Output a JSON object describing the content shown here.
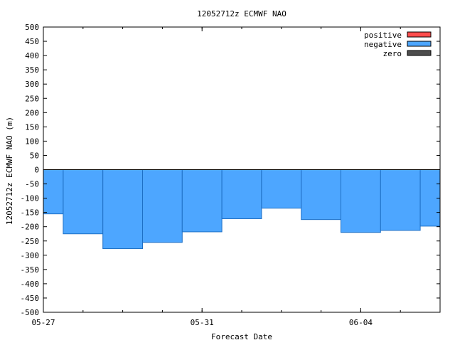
{
  "chart_data": {
    "type": "bar",
    "title": "12052712z ECMWF NAO",
    "xlabel": "Forecast Date",
    "ylabel": "12052712z ECMWF NAO (m)",
    "ylim": [
      -500,
      500
    ],
    "yticks": [
      500,
      450,
      400,
      350,
      300,
      250,
      200,
      150,
      100,
      50,
      0,
      -50,
      -100,
      -150,
      -200,
      -250,
      -300,
      -350,
      -400,
      -450,
      -500
    ],
    "xlim": [
      "2012-05-27",
      "2012-06-06"
    ],
    "xticks": [
      {
        "date": "2012-05-27",
        "label": "05-27"
      },
      {
        "date": "2012-05-31",
        "label": "05-31"
      },
      {
        "date": "2012-06-04",
        "label": "06-04"
      }
    ],
    "bar_width_days": 1,
    "grid": false,
    "legend_position": "top-right",
    "legend": [
      {
        "label": "positive",
        "color": "#ff4d4d"
      },
      {
        "label": "negative",
        "color": "#4da6ff"
      },
      {
        "label": "zero",
        "color": "#4d4d4d"
      }
    ],
    "series": [
      {
        "name": "negative",
        "color": "#4da6ff",
        "x": [
          "2012-05-27",
          "2012-05-28",
          "2012-05-29",
          "2012-05-30",
          "2012-05-31",
          "2012-06-01",
          "2012-06-02",
          "2012-06-03",
          "2012-06-04",
          "2012-06-05",
          "2012-06-06"
        ],
        "values": [
          -155,
          -225,
          -277,
          -255,
          -218,
          -172,
          -135,
          -175,
          -220,
          -213,
          -198
        ]
      }
    ]
  }
}
